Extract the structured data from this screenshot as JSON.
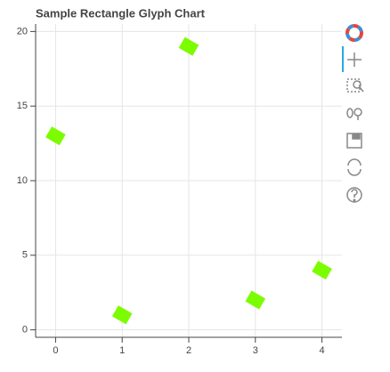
{
  "chart_data": {
    "type": "scatter",
    "title": "Sample Rectangle Glyph Chart",
    "x": [
      0,
      1,
      2,
      3,
      4
    ],
    "values": [
      13,
      1,
      19,
      2,
      4
    ],
    "color": "#7cfc00",
    "xlim": [
      -0.3,
      4.3
    ],
    "ylim": [
      -0.5,
      20.5
    ],
    "xticks": [
      0,
      1,
      2,
      3,
      4
    ],
    "yticks": [
      0,
      5,
      10,
      15,
      20
    ],
    "grid": true
  }
}
